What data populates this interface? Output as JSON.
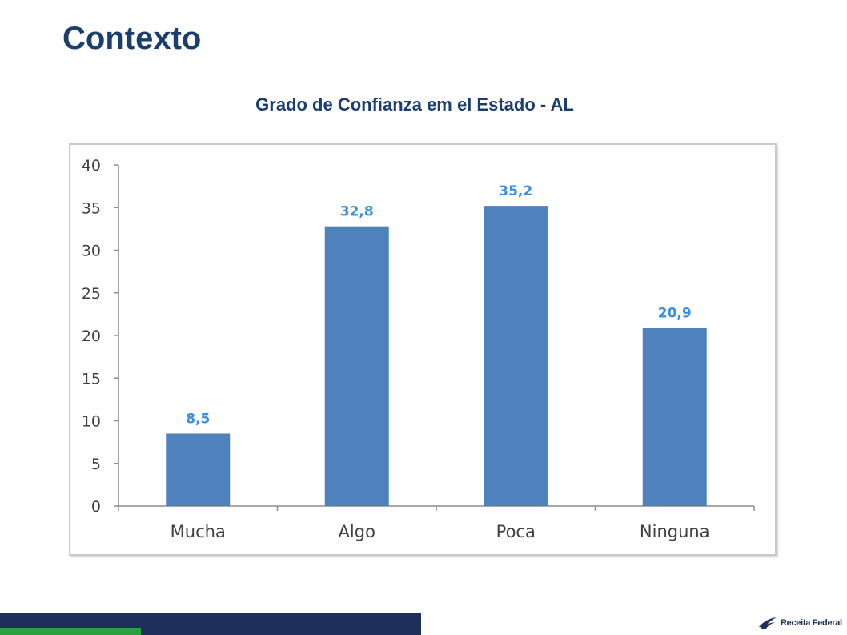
{
  "slide": {
    "title": "Contexto",
    "brand": "Receita Federal"
  },
  "colors": {
    "title": "#1a3e6e",
    "bar": "#4f81bd",
    "data_label": "#3c8ee0",
    "footer_navy": "#1e2f5a",
    "footer_green": "#2e9e44"
  },
  "chart_data": {
    "type": "bar",
    "title": "Grado de Confianza em el  Estado - AL",
    "categories": [
      "Mucha",
      "Algo",
      "Poca",
      "Ninguna"
    ],
    "values": [
      8.5,
      32.8,
      35.2,
      20.9
    ],
    "data_labels": [
      "8,5",
      "32,8",
      "35,2",
      "20,9"
    ],
    "y_ticks": [
      0,
      5,
      10,
      15,
      20,
      25,
      30,
      35,
      40
    ],
    "ylim": [
      0,
      40
    ],
    "xlabel": "",
    "ylabel": "",
    "grid": false,
    "legend": "none"
  }
}
